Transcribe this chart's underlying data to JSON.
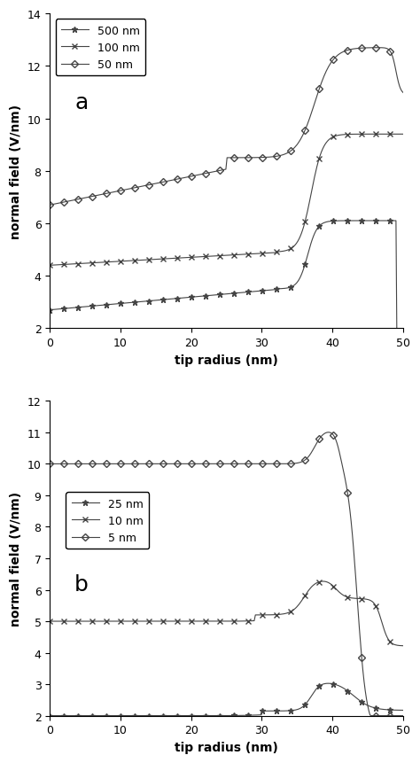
{
  "panel_a": {
    "title": "a",
    "xlabel": "tip radius (nm)",
    "ylabel": "normal field (V/nm)",
    "xlim": [
      0,
      50
    ],
    "ylim": [
      2,
      14
    ],
    "yticks": [
      2,
      4,
      6,
      8,
      10,
      12,
      14
    ],
    "xticks": [
      0,
      10,
      20,
      30,
      40,
      50
    ]
  },
  "panel_b": {
    "title": "b",
    "xlabel": "tip radius (nm)",
    "ylabel": "normal field (V/nm)",
    "xlim": [
      0,
      50
    ],
    "ylim": [
      2,
      12
    ],
    "yticks": [
      2,
      3,
      4,
      5,
      6,
      7,
      8,
      9,
      10,
      11,
      12
    ],
    "xticks": [
      0,
      10,
      20,
      30,
      40,
      50
    ]
  },
  "background_color": "#ffffff",
  "line_color": "#444444",
  "linewidth": 0.8,
  "title_fontsize": 18,
  "label_fontsize": 10,
  "tick_fontsize": 9,
  "legend_fontsize": 9
}
